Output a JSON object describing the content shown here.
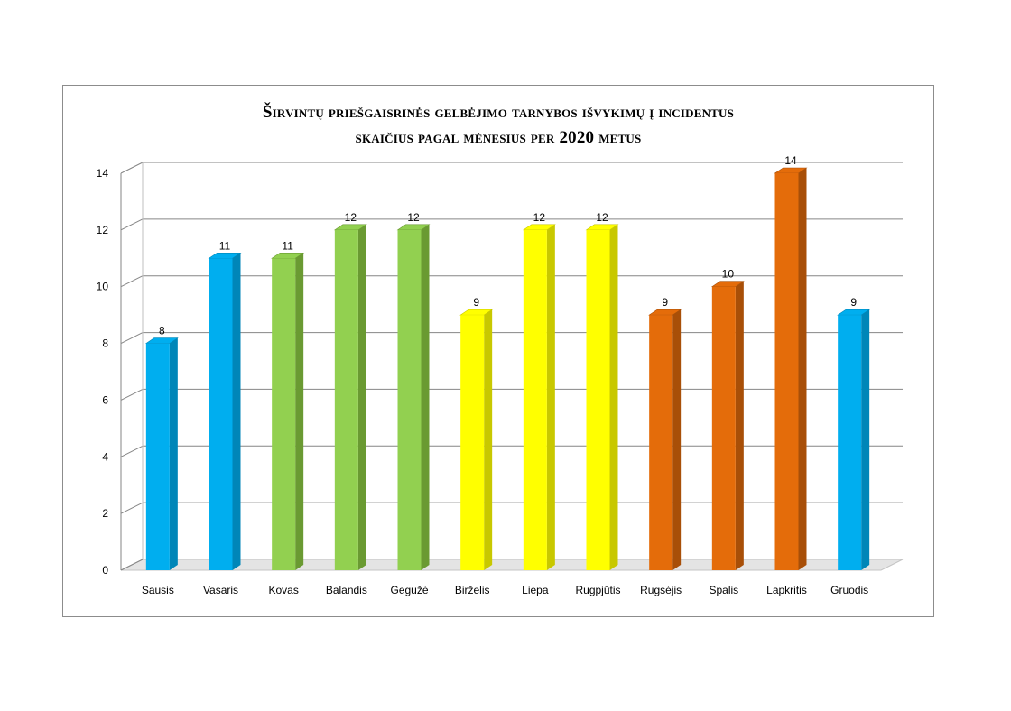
{
  "chart_data": {
    "type": "bar",
    "title_lines": [
      "Širvintų priešgaisrinės gelbėjimo tarnybos išvykimų į incidentus",
      "skaičius pagal mėnesius per 2020 metus"
    ],
    "categories": [
      "Sausis",
      "Vasaris",
      "Kovas",
      "Balandis",
      "Gegužė",
      "Birželis",
      "Liepa",
      "Rugpjūtis",
      "Rugsėjis",
      "Spalis",
      "Lapkritis",
      "Gruodis"
    ],
    "values": [
      8,
      11,
      11,
      12,
      12,
      9,
      12,
      12,
      9,
      10,
      14,
      9
    ],
    "bar_colors": [
      "#00aeef",
      "#00aeef",
      "#92d050",
      "#92d050",
      "#92d050",
      "#ffff00",
      "#ffff00",
      "#ffff00",
      "#e46c0a",
      "#e46c0a",
      "#e46c0a",
      "#00aeef"
    ],
    "bar_shade_colors": [
      "#0086b8",
      "#0086b8",
      "#6a9a32",
      "#6a9a32",
      "#6a9a32",
      "#c8c800",
      "#c8c800",
      "#c8c800",
      "#a84f08",
      "#a84f08",
      "#a84f08",
      "#0086b8"
    ],
    "yticks": [
      0,
      2,
      4,
      6,
      8,
      10,
      12,
      14
    ],
    "ylim": [
      0,
      14
    ],
    "data_labels": true,
    "legend": "none",
    "grid": true,
    "style": "3d-column"
  }
}
